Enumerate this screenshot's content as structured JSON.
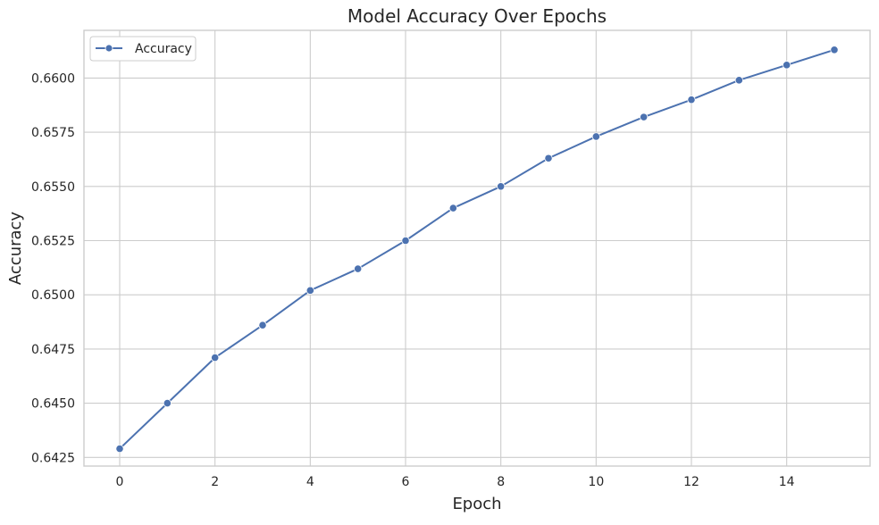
{
  "chart_data": {
    "type": "line",
    "title": "Model Accuracy Over Epochs",
    "xlabel": "Epoch",
    "ylabel": "Accuracy",
    "xlim": [
      -0.75,
      15.75
    ],
    "ylim": [
      0.6421,
      0.6622
    ],
    "x_ticks": [
      0,
      2,
      4,
      6,
      8,
      10,
      12,
      14
    ],
    "x_tick_labels": [
      "0",
      "2",
      "4",
      "6",
      "8",
      "10",
      "12",
      "14"
    ],
    "y_ticks": [
      0.6425,
      0.645,
      0.6475,
      0.65,
      0.6525,
      0.655,
      0.6575,
      0.66
    ],
    "y_tick_labels": [
      "0.6425",
      "0.6450",
      "0.6475",
      "0.6500",
      "0.6525",
      "0.6550",
      "0.6575",
      "0.6600"
    ],
    "grid": true,
    "legend_position": "top-left",
    "series": [
      {
        "name": "Accuracy",
        "color": "#4c72b0",
        "marker": "circle",
        "x": [
          0,
          1,
          2,
          3,
          4,
          5,
          6,
          7,
          8,
          9,
          10,
          11,
          12,
          13,
          14,
          15
        ],
        "y": [
          0.6429,
          0.645,
          0.6471,
          0.6486,
          0.6502,
          0.6512,
          0.6525,
          0.654,
          0.655,
          0.6563,
          0.6573,
          0.6582,
          0.659,
          0.6599,
          0.6606,
          0.6613
        ]
      }
    ]
  }
}
